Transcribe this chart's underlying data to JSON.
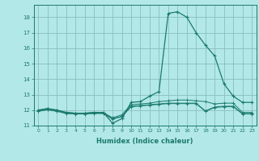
{
  "title": "",
  "xlabel": "Humidex (Indice chaleur)",
  "bg_color": "#b3e8e8",
  "line_color": "#1a7a6e",
  "grid_color": "#8abfbf",
  "xlim": [
    -0.5,
    23.5
  ],
  "ylim": [
    11.0,
    18.8
  ],
  "yticks": [
    11,
    12,
    13,
    14,
    15,
    16,
    17,
    18
  ],
  "xticks": [
    0,
    1,
    2,
    3,
    4,
    5,
    6,
    7,
    8,
    9,
    10,
    11,
    12,
    13,
    14,
    15,
    16,
    17,
    18,
    19,
    20,
    21,
    22,
    23
  ],
  "series": [
    {
      "x": [
        0,
        1,
        2,
        3,
        4,
        5,
        6,
        7,
        8,
        9,
        10,
        11,
        12,
        13,
        14,
        15,
        16,
        17,
        18,
        19,
        20,
        21,
        22,
        23
      ],
      "y": [
        12.0,
        12.1,
        12.0,
        11.85,
        11.8,
        11.8,
        11.85,
        11.85,
        11.15,
        11.45,
        12.5,
        12.55,
        12.9,
        13.2,
        18.25,
        18.35,
        18.0,
        17.0,
        16.2,
        15.5,
        13.7,
        12.9,
        12.5,
        12.5
      ]
    },
    {
      "x": [
        0,
        1,
        2,
        3,
        4,
        5,
        6,
        7,
        8,
        9,
        10,
        11,
        12,
        13,
        14,
        15,
        16,
        17,
        18,
        19,
        20,
        21,
        22,
        23
      ],
      "y": [
        12.0,
        12.1,
        12.0,
        11.85,
        11.8,
        11.8,
        11.85,
        11.85,
        11.5,
        11.7,
        12.35,
        12.4,
        12.45,
        12.55,
        12.6,
        12.65,
        12.65,
        12.6,
        12.55,
        12.4,
        12.45,
        12.45,
        11.85,
        11.85
      ]
    },
    {
      "x": [
        0,
        1,
        2,
        3,
        4,
        5,
        6,
        7,
        8,
        9,
        10,
        11,
        12,
        13,
        14,
        15,
        16,
        17,
        18,
        19,
        20,
        21,
        22,
        23
      ],
      "y": [
        11.95,
        12.05,
        11.95,
        11.8,
        11.78,
        11.78,
        11.8,
        11.8,
        11.45,
        11.6,
        12.25,
        12.3,
        12.35,
        12.4,
        12.45,
        12.45,
        12.45,
        12.45,
        11.95,
        12.2,
        12.25,
        12.25,
        11.78,
        11.78
      ]
    },
    {
      "x": [
        0,
        1,
        2,
        3,
        4,
        5,
        6,
        7,
        8,
        9,
        10,
        11,
        12,
        13,
        14,
        15,
        16,
        17,
        18,
        19,
        20,
        21,
        22,
        23
      ],
      "y": [
        11.92,
        12.02,
        11.92,
        11.78,
        11.75,
        11.75,
        11.78,
        11.78,
        11.42,
        11.57,
        12.22,
        12.27,
        12.32,
        12.37,
        12.42,
        12.42,
        12.42,
        12.42,
        11.92,
        12.17,
        12.22,
        12.22,
        11.75,
        11.75
      ]
    }
  ]
}
